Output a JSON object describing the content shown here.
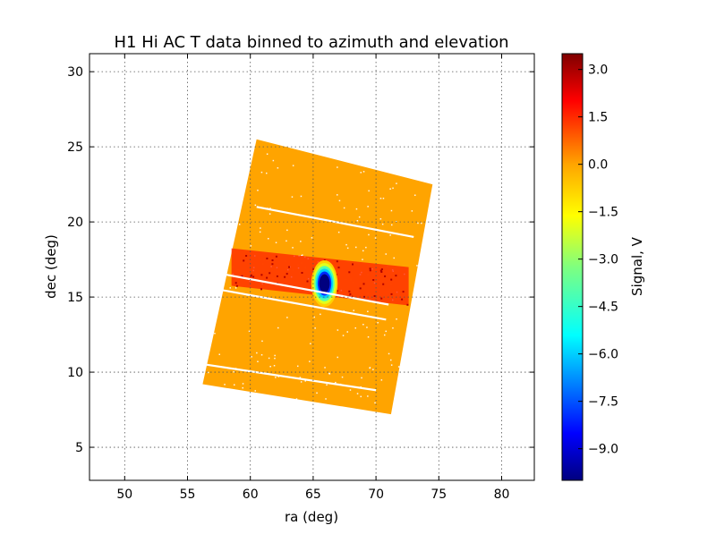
{
  "chart_data": {
    "type": "heatmap",
    "title": "H1 Hi AC T data binned to azimuth and elevation",
    "xlabel": "ra (deg)",
    "ylabel": "dec (deg)",
    "xlim": [
      47.2,
      82.6
    ],
    "ylim": [
      2.8,
      31.2
    ],
    "xticks": [
      50,
      55,
      60,
      65,
      70,
      75,
      80
    ],
    "yticks": [
      5,
      10,
      15,
      20,
      25,
      30
    ],
    "grid": true,
    "colormap": "jet",
    "colorbar": {
      "label": "Signal, V",
      "range": [
        -10.0,
        3.5
      ],
      "ticks": [
        3.0,
        1.5,
        0.0,
        -1.5,
        -3.0,
        -4.5,
        -6.0,
        -7.5,
        -9.0
      ],
      "tick_labels": [
        "3.0",
        "1.5",
        "0.0",
        "−1.5",
        "−3.0",
        "−4.5",
        "−6.0",
        "−7.5",
        "−9.0"
      ]
    },
    "background_value": 0.0,
    "footprint": {
      "corners_ra_dec": [
        [
          60.5,
          25.5
        ],
        [
          74.5,
          22.5
        ],
        [
          71.2,
          7.2
        ],
        [
          56.2,
          9.2
        ]
      ]
    },
    "features": [
      {
        "kind": "band",
        "ra": [
          58.5,
          72.6
        ],
        "dec": [
          14.8,
          18.3
        ],
        "value": 1.6
      },
      {
        "kind": "source",
        "ra": 65.9,
        "dec": 15.9,
        "radius_ra": 1.05,
        "radius_dec": 1.55,
        "value": -10.0
      }
    ],
    "gaps": [
      {
        "from": [
          60.5,
          21.0
        ],
        "to": [
          73.0,
          19.0
        ]
      },
      {
        "from": [
          58.0,
          16.5
        ],
        "to": [
          71.0,
          14.5
        ]
      },
      {
        "from": [
          57.5,
          15.5
        ],
        "to": [
          70.8,
          13.5
        ]
      },
      {
        "from": [
          56.5,
          10.5
        ],
        "to": [
          70.0,
          8.8
        ]
      }
    ]
  }
}
